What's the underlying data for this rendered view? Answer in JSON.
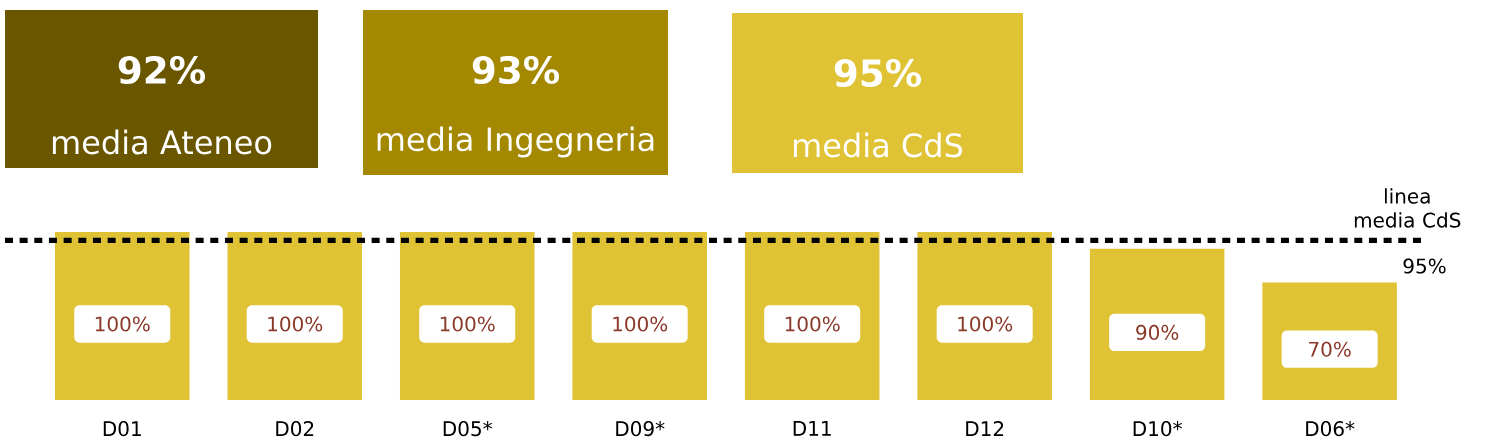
{
  "chart_data": {
    "type": "bar",
    "categories": [
      "D01",
      "D02",
      "D05*",
      "D09*",
      "D11",
      "D12",
      "D10*",
      "D06*"
    ],
    "values": [
      100,
      100,
      100,
      100,
      100,
      100,
      90,
      70
    ],
    "color": "#e0c335",
    "value_labels": [
      "100%",
      "100%",
      "100%",
      "100%",
      "100%",
      "100%",
      "90%",
      "70%"
    ],
    "ref_lines": [
      {
        "axis": "y",
        "value": 95,
        "label": "linea media CdS",
        "line_style": "dashed",
        "color": "#000000"
      }
    ],
    "annotations": [
      "92%",
      "media Ateneo",
      "93%",
      "media Ingegneria",
      "95%",
      "media CdS",
      "95%"
    ]
  }
}
